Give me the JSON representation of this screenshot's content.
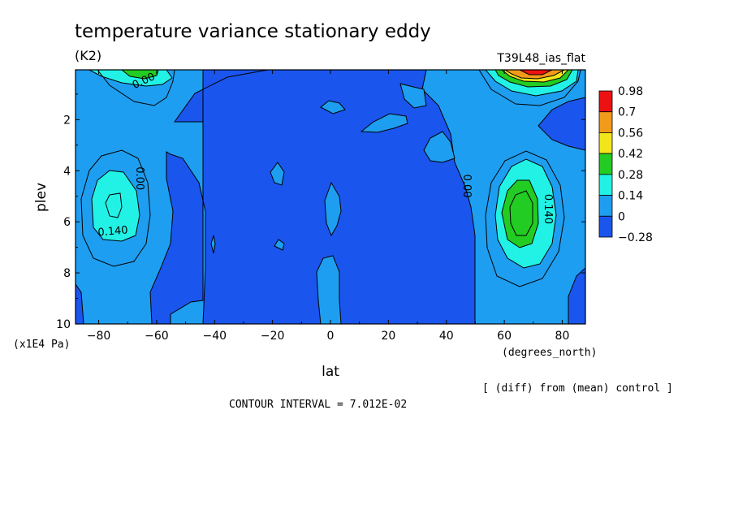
{
  "chart_data": {
    "type": "contour",
    "title": "temperature variance stationary eddy",
    "units": "(K2)",
    "run_label": "T39L48_ias_flat",
    "xlabel": "lat",
    "xunits": "(degrees_north)",
    "ylabel": "plev",
    "yunits": "(x1E4 Pa)",
    "diff_note": "[ (diff) from (mean) control ]",
    "contour_interval": "CONTOUR INTERVAL = 7.012E-02",
    "xlim": [
      -88,
      88
    ],
    "ylim": [
      10,
      0.05
    ],
    "x_ticks": [
      -80,
      -60,
      -40,
      -20,
      0,
      20,
      40,
      60,
      80
    ],
    "x_tick_labels": [
      "−80",
      "−60",
      "−40",
      "−20",
      "0",
      "20",
      "40",
      "60",
      "80"
    ],
    "y_ticks": [
      2,
      4,
      6,
      8,
      10
    ],
    "y_tick_labels": [
      "2",
      "4",
      "6",
      "8",
      "10"
    ],
    "colorbar": {
      "labels": [
        "0.98",
        "0.7",
        "0.56",
        "0.42",
        "0.28",
        "0.14",
        "0",
        "−0.28"
      ],
      "colors": [
        "#ee1111",
        "#f29a1a",
        "#f2e51a",
        "#22cc22",
        "#22f2e5",
        "#1e9ef0",
        "#1a55ee"
      ]
    },
    "colors": {
      "low": "#1a55ee",
      "base": "#1e9ef0",
      "level1": "#22f2e5",
      "level2": "#22cc22",
      "level3": "#f2e51a",
      "level4": "#f29a1a",
      "level5": "#ee1111"
    },
    "contour_labels": [
      {
        "text": "0.00",
        "lat": -64,
        "plev": 0.6,
        "angle": -25
      },
      {
        "text": "0.00",
        "lat": -67,
        "plev": 4.3,
        "angle": 90
      },
      {
        "text": "0.140",
        "lat": -75,
        "plev": 6.5,
        "angle": -5
      },
      {
        "text": "0.00",
        "lat": 46,
        "plev": 4.6,
        "angle": 90
      },
      {
        "text": "0.140",
        "lat": 74,
        "plev": 5.5,
        "angle": 90
      }
    ],
    "features": [
      {
        "name": "SH midlevel maximum",
        "lat": -75,
        "plev": 5.3,
        "max": 0.2
      },
      {
        "name": "NH midlevel maximum",
        "lat": 64,
        "plev": 5.8,
        "max": 0.35
      },
      {
        "name": "SH stratospheric maximum",
        "lat": -70,
        "plev": 0.1,
        "max": 0.35
      },
      {
        "name": "NH stratospheric maximum",
        "lat": 64,
        "plev": 0.1,
        "max": 0.98
      }
    ]
  }
}
